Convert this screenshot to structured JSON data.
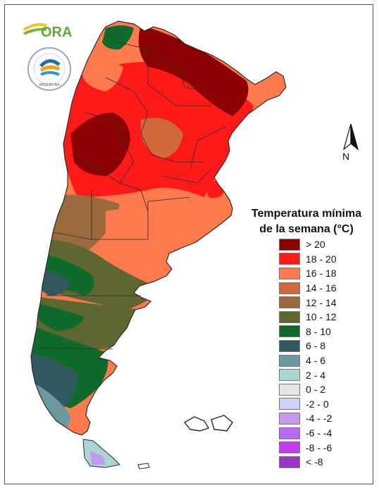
{
  "title": {
    "line1": "Temperatura mínima",
    "line2": "de la semana (°C)"
  },
  "legend": [
    {
      "label": "> 20",
      "color": "#8b0000"
    },
    {
      "label": "18 - 20",
      "color": "#ff1a1a"
    },
    {
      "label": "16 - 18",
      "color": "#ff7a4d"
    },
    {
      "label": "14 - 16",
      "color": "#d2693a"
    },
    {
      "label": "12 - 14",
      "color": "#9b6a3c"
    },
    {
      "label": "10 - 12",
      "color": "#5f6630"
    },
    {
      "label": "8 - 10",
      "color": "#0f6b2b"
    },
    {
      "label": "6 - 8",
      "color": "#305a60"
    },
    {
      "label": "4 - 6",
      "color": "#6a9aa0"
    },
    {
      "label": "2 - 4",
      "color": "#a8d6d2"
    },
    {
      "label": "0 - 2",
      "color": "#e6e6e6"
    },
    {
      "label": "-2 - 0",
      "color": "#cfd1f7"
    },
    {
      "label": "-4 - -2",
      "color": "#c39af0"
    },
    {
      "label": "-6 - -4",
      "color": "#b969f0"
    },
    {
      "label": "-8 - -6",
      "color": "#c23cf0"
    },
    {
      "label": "< -8",
      "color": "#9a34c9"
    }
  ],
  "north_label": "N",
  "logo": {
    "ora_text": "ORA",
    "smn_ring_text": "SERVICIO METEOROLÓGICO NACIONAL",
    "smn_bottom_text": "ARGENTINA"
  },
  "colors": {
    "border": "#555555",
    "province_lines": "#2b2b2b"
  }
}
